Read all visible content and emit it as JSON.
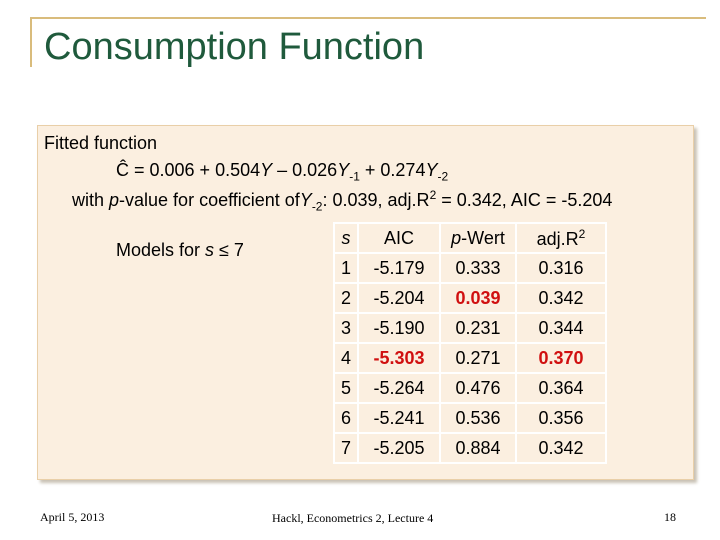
{
  "title": "Consumption Function",
  "box": {
    "intro": "Fitted function",
    "formula": [
      "Ĉ = 0.006 + 0.504",
      "Y",
      " – 0.026",
      "Y",
      "-1",
      " + 0.274",
      "Y",
      "-2"
    ],
    "with_line": [
      "with ",
      "p",
      "-value for coefficient of",
      "Y",
      "-2",
      ": 0.039, adj.R",
      "2",
      " = 0.342, AIC = -5.204"
    ],
    "models_label": [
      "Models for ",
      "s",
      " ≤ 7"
    ]
  },
  "table": {
    "header": [
      "s",
      "AIC",
      "p",
      "-Wert",
      "adj.R",
      "2"
    ],
    "rows": [
      [
        "1",
        "-5.179",
        "0.333",
        "0.316"
      ],
      [
        "2",
        "-5.204",
        "0.039",
        "0.342"
      ],
      [
        "3",
        "-5.190",
        "0.231",
        "0.344"
      ],
      [
        "4",
        "-5.303",
        "0.271",
        "0.370"
      ],
      [
        "5",
        "-5.264",
        "0.476",
        "0.364"
      ],
      [
        "6",
        "-5.241",
        "0.536",
        "0.356"
      ],
      [
        "7",
        "-5.205",
        "0.884",
        "0.342"
      ]
    ]
  },
  "footer": {
    "date": "April 5, 2013",
    "course": "Hackl, Econometrics 2, Lecture 4",
    "page": "18"
  }
}
